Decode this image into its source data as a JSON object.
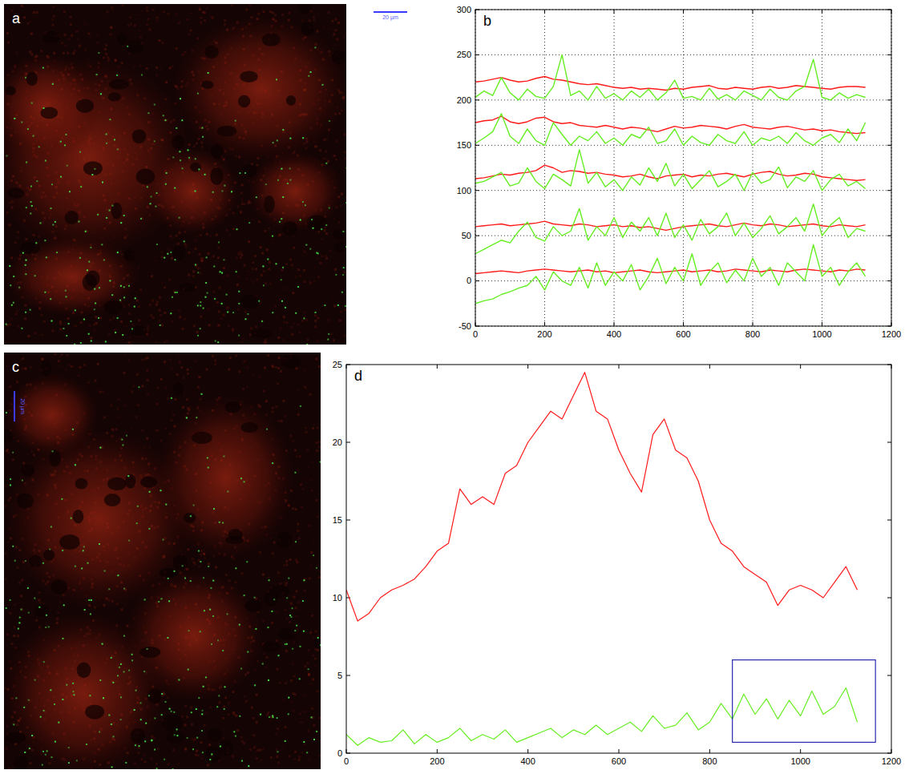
{
  "chart_data": [
    {
      "type": "line",
      "title": "b",
      "grid": true,
      "xlim": [
        0,
        1200
      ],
      "xticks": [
        0,
        200,
        400,
        600,
        800,
        1000,
        1200
      ],
      "ylim": [
        -50,
        300
      ],
      "yticks": [
        -50,
        0,
        50,
        100,
        150,
        200,
        250,
        300
      ],
      "x": [
        0,
        25,
        50,
        75,
        100,
        125,
        150,
        175,
        200,
        225,
        250,
        275,
        300,
        325,
        350,
        375,
        400,
        425,
        450,
        475,
        500,
        525,
        550,
        575,
        600,
        625,
        650,
        675,
        700,
        725,
        750,
        775,
        800,
        825,
        850,
        875,
        900,
        925,
        950,
        975,
        1000,
        1025,
        1050,
        1075,
        1100,
        1125
      ],
      "series": [
        {
          "color": "#ff1a1a",
          "values": [
            220,
            221,
            223,
            225,
            222,
            220,
            221,
            224,
            226,
            223,
            222,
            220,
            218,
            217,
            218,
            216,
            214,
            213,
            214,
            212,
            213,
            212,
            211,
            213,
            212,
            214,
            215,
            216,
            213,
            212,
            214,
            213,
            212,
            214,
            215,
            213,
            214,
            216,
            215,
            214,
            213,
            212,
            214,
            215,
            215,
            214
          ]
        },
        {
          "color": "#66ee22",
          "values": [
            203,
            210,
            205,
            225,
            208,
            200,
            212,
            204,
            202,
            215,
            250,
            205,
            210,
            200,
            215,
            202,
            207,
            200,
            210,
            203,
            212,
            200,
            208,
            222,
            202,
            204,
            200,
            213,
            201,
            206,
            200,
            210,
            205,
            200,
            212,
            203,
            200,
            210,
            215,
            245,
            203,
            200,
            208,
            202,
            206,
            203
          ]
        },
        {
          "color": "#ff1a1a",
          "values": [
            175,
            177,
            178,
            182,
            176,
            174,
            176,
            180,
            181,
            176,
            174,
            175,
            172,
            171,
            170,
            172,
            170,
            168,
            170,
            169,
            167,
            165,
            168,
            171,
            169,
            170,
            172,
            171,
            170,
            168,
            171,
            173,
            170,
            169,
            168,
            170,
            171,
            169,
            167,
            168,
            166,
            167,
            165,
            164,
            163,
            164
          ]
        },
        {
          "color": "#66ee22",
          "values": [
            152,
            158,
            165,
            185,
            160,
            152,
            168,
            155,
            150,
            175,
            162,
            150,
            160,
            155,
            165,
            152,
            158,
            150,
            162,
            158,
            170,
            152,
            155,
            168,
            150,
            160,
            153,
            150,
            162,
            155,
            152,
            165,
            150,
            158,
            155,
            160,
            152,
            164,
            155,
            150,
            158,
            162,
            153,
            168,
            155,
            175
          ]
        },
        {
          "color": "#ff1a1a",
          "values": [
            113,
            114,
            116,
            118,
            117,
            119,
            120,
            122,
            128,
            125,
            120,
            122,
            121,
            119,
            120,
            118,
            117,
            115,
            116,
            118,
            115,
            113,
            116,
            117,
            118,
            115,
            117,
            116,
            118,
            119,
            117,
            115,
            118,
            120,
            121,
            118,
            116,
            117,
            119,
            118,
            115,
            114,
            113,
            112,
            111,
            112
          ]
        },
        {
          "color": "#66ee22",
          "values": [
            108,
            110,
            115,
            120,
            105,
            108,
            125,
            110,
            102,
            118,
            112,
            105,
            145,
            108,
            120,
            104,
            112,
            100,
            115,
            106,
            125,
            110,
            130,
            105,
            118,
            102,
            112,
            122,
            104,
            110,
            118,
            100,
            120,
            108,
            112,
            126,
            103,
            115,
            110,
            122,
            100,
            112,
            118,
            105,
            110,
            102
          ]
        },
        {
          "color": "#ff1a1a",
          "values": [
            60,
            61,
            62,
            63,
            61,
            62,
            63,
            64,
            66,
            63,
            62,
            61,
            63,
            62,
            60,
            61,
            62,
            60,
            61,
            59,
            60,
            58,
            56,
            58,
            60,
            61,
            62,
            63,
            61,
            60,
            62,
            64,
            62,
            61,
            63,
            62,
            60,
            61,
            62,
            63,
            61,
            60,
            62,
            61,
            60,
            62
          ]
        },
        {
          "color": "#66ee22",
          "values": [
            30,
            35,
            40,
            45,
            42,
            55,
            65,
            48,
            44,
            60,
            50,
            55,
            80,
            45,
            60,
            50,
            70,
            48,
            65,
            55,
            70,
            50,
            75,
            48,
            62,
            45,
            68,
            52,
            60,
            75,
            50,
            64,
            48,
            58,
            72,
            52,
            60,
            70,
            55,
            85,
            50,
            62,
            70,
            48,
            58,
            55
          ]
        },
        {
          "color": "#ff1a1a",
          "values": [
            8,
            9,
            10,
            11,
            10,
            9,
            11,
            12,
            13,
            12,
            11,
            10,
            11,
            12,
            10,
            11,
            9,
            10,
            11,
            12,
            10,
            9,
            10,
            11,
            12,
            10,
            11,
            12,
            10,
            11,
            13,
            12,
            11,
            10,
            12,
            11,
            10,
            12,
            13,
            12,
            11,
            10,
            12,
            11,
            13,
            12
          ]
        },
        {
          "color": "#66ee22",
          "values": [
            -25,
            -22,
            -20,
            -15,
            -12,
            -8,
            -5,
            5,
            -10,
            10,
            0,
            -5,
            15,
            -8,
            20,
            -5,
            10,
            0,
            18,
            -10,
            5,
            25,
            -3,
            15,
            0,
            30,
            -5,
            10,
            20,
            -2,
            12,
            0,
            25,
            5,
            15,
            -5,
            20,
            10,
            0,
            40,
            5,
            15,
            -5,
            10,
            20,
            5
          ]
        }
      ]
    },
    {
      "type": "line",
      "title": "d",
      "grid": false,
      "xlim": [
        0,
        1200
      ],
      "xticks": [
        0,
        200,
        400,
        600,
        800,
        1000,
        1200
      ],
      "ylim": [
        0,
        25
      ],
      "yticks": [
        0,
        5,
        10,
        15,
        20,
        25
      ],
      "x": [
        0,
        25,
        50,
        75,
        100,
        125,
        150,
        175,
        200,
        225,
        250,
        275,
        300,
        325,
        350,
        375,
        400,
        425,
        450,
        475,
        500,
        525,
        550,
        575,
        600,
        625,
        650,
        675,
        700,
        725,
        750,
        775,
        800,
        825,
        850,
        875,
        900,
        925,
        950,
        975,
        1000,
        1025,
        1050,
        1075,
        1100,
        1125
      ],
      "series": [
        {
          "color": "#ff1a1a",
          "values": [
            10.5,
            8.5,
            9,
            10,
            10.5,
            10.8,
            11.2,
            12,
            13,
            13.5,
            17,
            16,
            16.5,
            16,
            18,
            18.5,
            20,
            21,
            22,
            21.5,
            23,
            24.5,
            22,
            21.5,
            19.5,
            18,
            16.8,
            20.5,
            21.5,
            19.5,
            19,
            17.5,
            15,
            13.5,
            13,
            12,
            11.5,
            11,
            9.5,
            10.5,
            10.8,
            10.5,
            10,
            11,
            12,
            10.5
          ]
        },
        {
          "color": "#66ee22",
          "values": [
            1.2,
            0.5,
            1,
            0.7,
            0.8,
            1.5,
            0.6,
            1.2,
            0.7,
            1,
            1.6,
            0.8,
            1.2,
            0.9,
            1.5,
            0.7,
            1,
            1.3,
            1.6,
            1,
            1.5,
            1.2,
            1.8,
            1.2,
            1.6,
            2,
            1.4,
            2.4,
            1.6,
            1.8,
            2.6,
            1.5,
            2,
            3.2,
            2.2,
            3.8,
            2.5,
            3.5,
            2.2,
            3.4,
            2.4,
            4,
            2.5,
            3,
            4.2,
            2
          ]
        }
      ],
      "highlight_box": {
        "x0": 850,
        "x1": 1165,
        "y0": 0.7,
        "y1": 6
      }
    }
  ],
  "images": [
    {
      "label": "a",
      "scale_bar": "20 µm"
    },
    {
      "label": "c",
      "scale_bar": "20 µm"
    }
  ]
}
